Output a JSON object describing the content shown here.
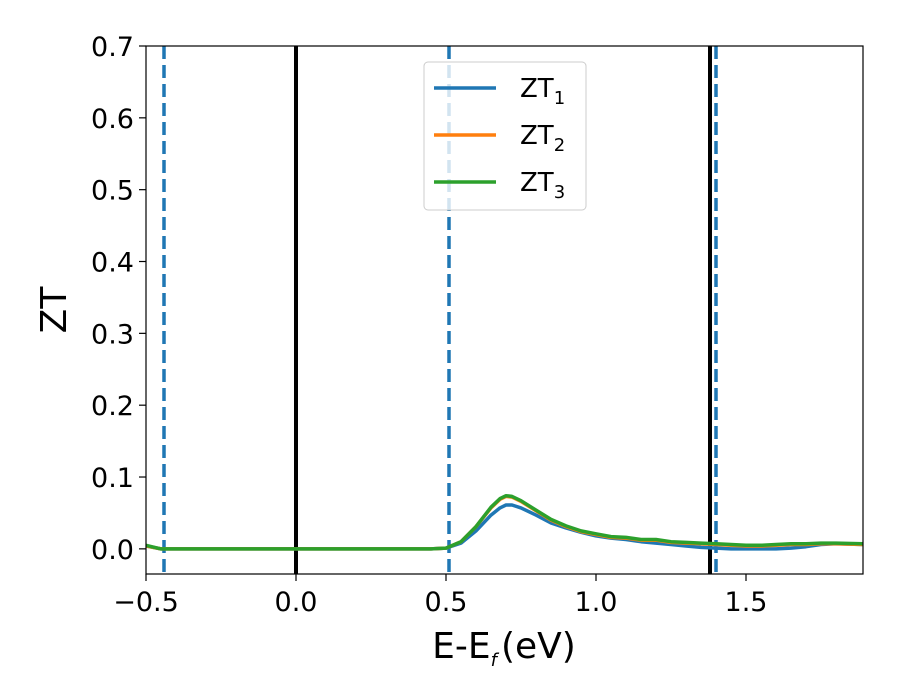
{
  "chart_data": {
    "type": "line",
    "xlabel": "E-E",
    "xlabel_sub": "f",
    "xlabel_unit": "(eV)",
    "ylabel": "ZT",
    "xlim": [
      -0.5,
      1.89
    ],
    "ylim": [
      -0.035,
      0.7
    ],
    "xticks": [
      -0.5,
      0.0,
      0.5,
      1.0,
      1.5
    ],
    "xtick_labels": [
      "−0.5",
      "0.0",
      "0.5",
      "1.0",
      "1.5"
    ],
    "yticks": [
      0.0,
      0.1,
      0.2,
      0.3,
      0.4,
      0.5,
      0.6,
      0.7
    ],
    "ytick_labels": [
      "0.0",
      "0.1",
      "0.2",
      "0.3",
      "0.4",
      "0.5",
      "0.6",
      "0.7"
    ],
    "grid": false,
    "legend_position": "top-center",
    "vlines": [
      {
        "x": -0.44,
        "style": "dashed",
        "color": "#1f77b4"
      },
      {
        "x": 0.0,
        "style": "solid",
        "color": "#000000"
      },
      {
        "x": 0.51,
        "style": "dashed",
        "color": "#1f77b4"
      },
      {
        "x": 1.38,
        "style": "solid",
        "color": "#000000"
      },
      {
        "x": 1.4,
        "style": "dashed",
        "color": "#1f77b4"
      }
    ],
    "series": [
      {
        "name": "ZT",
        "name_sub": "1",
        "color": "#1f77b4",
        "x": [
          -0.5,
          -0.45,
          0.0,
          0.45,
          0.5,
          0.55,
          0.6,
          0.65,
          0.68,
          0.7,
          0.72,
          0.75,
          0.8,
          0.85,
          0.9,
          0.95,
          1.0,
          1.05,
          1.1,
          1.15,
          1.2,
          1.25,
          1.3,
          1.35,
          1.4,
          1.45,
          1.5,
          1.55,
          1.6,
          1.65,
          1.7,
          1.75,
          1.8,
          1.89
        ],
        "y": [
          0.004,
          0.0,
          0.0,
          0.0,
          0.001,
          0.008,
          0.025,
          0.047,
          0.057,
          0.061,
          0.061,
          0.057,
          0.047,
          0.036,
          0.029,
          0.023,
          0.018,
          0.015,
          0.013,
          0.01,
          0.008,
          0.006,
          0.004,
          0.002,
          0.001,
          0.0,
          0.0,
          0.0,
          0.0,
          0.001,
          0.003,
          0.006,
          0.007,
          0.006
        ]
      },
      {
        "name": "ZT",
        "name_sub": "2",
        "color": "#ff7f0e",
        "x": [
          -0.5,
          -0.45,
          0.0,
          0.45,
          0.5,
          0.55,
          0.6,
          0.65,
          0.68,
          0.7,
          0.72,
          0.75,
          0.8,
          0.85,
          0.9,
          0.95,
          1.0,
          1.05,
          1.1,
          1.15,
          1.2,
          1.25,
          1.3,
          1.35,
          1.4,
          1.45,
          1.5,
          1.55,
          1.6,
          1.65,
          1.7,
          1.75,
          1.8,
          1.89
        ],
        "y": [
          0.004,
          0.0,
          0.0,
          0.0,
          0.001,
          0.01,
          0.031,
          0.057,
          0.069,
          0.073,
          0.072,
          0.066,
          0.053,
          0.04,
          0.031,
          0.024,
          0.02,
          0.016,
          0.015,
          0.012,
          0.012,
          0.009,
          0.008,
          0.007,
          0.006,
          0.005,
          0.004,
          0.004,
          0.005,
          0.006,
          0.006,
          0.007,
          0.007,
          0.006
        ]
      },
      {
        "name": "ZT",
        "name_sub": "3",
        "color": "#2ca02c",
        "x": [
          -0.5,
          -0.45,
          0.0,
          0.45,
          0.5,
          0.55,
          0.6,
          0.65,
          0.68,
          0.7,
          0.72,
          0.75,
          0.8,
          0.85,
          0.9,
          0.95,
          1.0,
          1.05,
          1.1,
          1.15,
          1.2,
          1.25,
          1.3,
          1.35,
          1.4,
          1.45,
          1.5,
          1.55,
          1.6,
          1.65,
          1.7,
          1.75,
          1.8,
          1.89
        ],
        "y": [
          0.005,
          0.0,
          0.0,
          0.0,
          0.001,
          0.01,
          0.031,
          0.058,
          0.07,
          0.074,
          0.073,
          0.067,
          0.054,
          0.041,
          0.032,
          0.025,
          0.021,
          0.017,
          0.016,
          0.013,
          0.013,
          0.01,
          0.009,
          0.008,
          0.007,
          0.006,
          0.005,
          0.005,
          0.006,
          0.007,
          0.007,
          0.008,
          0.008,
          0.007
        ]
      }
    ]
  }
}
